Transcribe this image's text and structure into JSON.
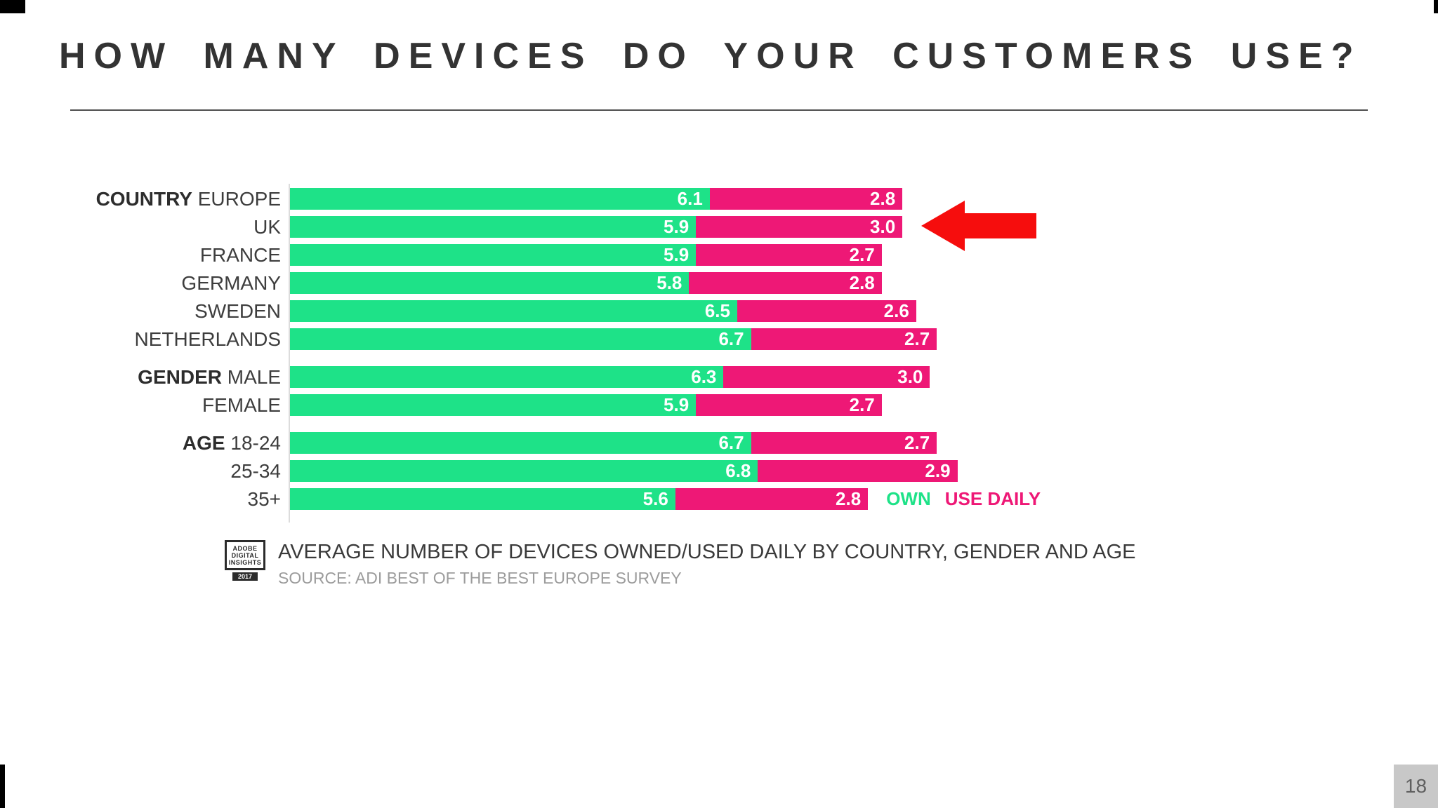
{
  "slide": {
    "title": "HOW MANY DEVICES DO YOUR CUSTOMERS USE?",
    "page_number": "18"
  },
  "chart_data": {
    "type": "bar",
    "orientation": "horizontal",
    "stacked": true,
    "title": "AVERAGE NUMBER OF DEVICES OWNED/USED DAILY BY COUNTRY, GENDER AND AGE",
    "source": "SOURCE: ADI BEST OF THE BEST EUROPE SURVEY",
    "legend": [
      "OWN",
      "USE DAILY"
    ],
    "series_colors": {
      "own": "#1ee288",
      "use_daily": "#ee1876"
    },
    "axis": {
      "value_min": 0,
      "gridlines": false,
      "legend_position": "bottom-right"
    },
    "groups": [
      {
        "group": "COUNTRY",
        "rows": [
          {
            "label": "EUROPE",
            "own": "6.1",
            "use_daily": "2.8"
          },
          {
            "label": "UK",
            "own": "5.9",
            "use_daily": "3.0"
          },
          {
            "label": "FRANCE",
            "own": "5.9",
            "use_daily": "2.7"
          },
          {
            "label": "GERMANY",
            "own": "5.8",
            "use_daily": "2.8"
          },
          {
            "label": "SWEDEN",
            "own": "6.5",
            "use_daily": "2.6"
          },
          {
            "label": "NETHERLANDS",
            "own": "6.7",
            "use_daily": "2.7"
          }
        ]
      },
      {
        "group": "GENDER",
        "rows": [
          {
            "label": "MALE",
            "own": "6.3",
            "use_daily": "3.0"
          },
          {
            "label": "FEMALE",
            "own": "5.9",
            "use_daily": "2.7"
          }
        ]
      },
      {
        "group": "AGE",
        "rows": [
          {
            "label": "18-24",
            "own": "6.7",
            "use_daily": "2.7"
          },
          {
            "label": "25-34",
            "own": "6.8",
            "use_daily": "2.9"
          },
          {
            "label": "35+",
            "own": "5.6",
            "use_daily": "2.8"
          }
        ]
      }
    ],
    "annotation": {
      "type": "arrow-left",
      "target_row": "UK",
      "color": "#f60d0d"
    }
  },
  "badge": {
    "line1": "ADOBE",
    "line2": "DIGITAL",
    "line3": "INSIGHTS",
    "year": "2017"
  }
}
